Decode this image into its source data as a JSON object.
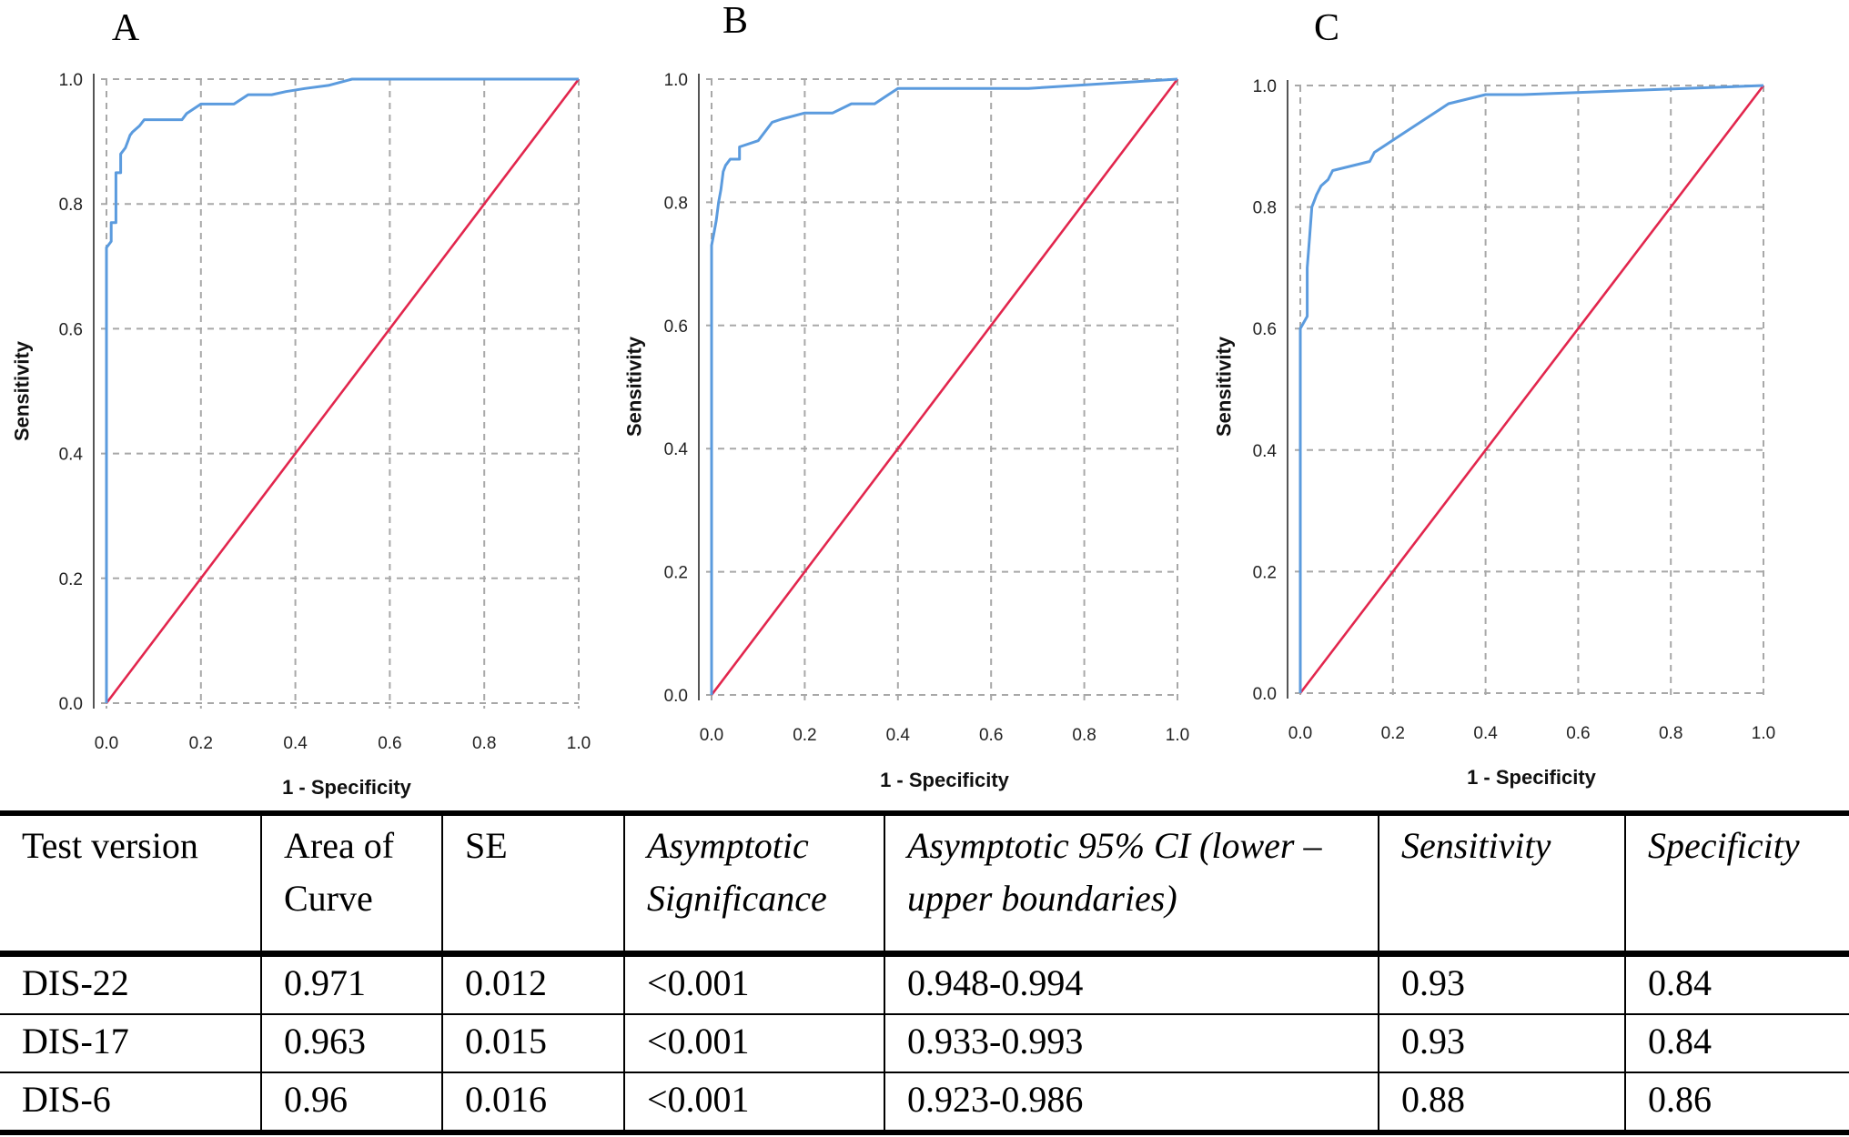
{
  "chart_data": [
    {
      "panel": "A",
      "type": "line",
      "xlabel": "1 - Specificity",
      "ylabel": "Sensitivity",
      "xlim": [
        0,
        1
      ],
      "ylim": [
        0,
        1
      ],
      "xticks": [
        "0.0",
        "0.2",
        "0.4",
        "0.6",
        "0.8",
        "1.0"
      ],
      "yticks": [
        "0.0",
        "0.2",
        "0.4",
        "0.6",
        "0.8",
        "1.0"
      ],
      "grid": true,
      "colors": {
        "roc": "#5b9bde",
        "reference": "#e2264d"
      },
      "series": [
        {
          "x": [
            0,
            0,
            0.01,
            0.01,
            0.02,
            0.02,
            0.03,
            0.03,
            0.04,
            0.045,
            0.05,
            0.055,
            0.07,
            0.08,
            0.1,
            0.12,
            0.16,
            0.17,
            0.2,
            0.27,
            0.3,
            0.35,
            0.38,
            0.42,
            0.47,
            0.52,
            1.0
          ],
          "y": [
            0,
            0.73,
            0.74,
            0.77,
            0.77,
            0.85,
            0.85,
            0.88,
            0.89,
            0.9,
            0.91,
            0.915,
            0.925,
            0.935,
            0.935,
            0.935,
            0.935,
            0.945,
            0.96,
            0.96,
            0.975,
            0.975,
            0.98,
            0.985,
            0.99,
            1.0,
            1.0
          ]
        },
        {
          "x": [
            0,
            1
          ],
          "y": [
            0,
            1
          ]
        }
      ]
    },
    {
      "panel": "B",
      "type": "line",
      "xlabel": "1 - Specificity",
      "ylabel": "Sensitivity",
      "xlim": [
        0,
        1
      ],
      "ylim": [
        0,
        1
      ],
      "xticks": [
        "0.0",
        "0.2",
        "0.4",
        "0.6",
        "0.8",
        "1.0"
      ],
      "yticks": [
        "0.0",
        "0.2",
        "0.4",
        "0.6",
        "0.8",
        "1.0"
      ],
      "grid": true,
      "colors": {
        "roc": "#5b9bde",
        "reference": "#e2264d"
      },
      "series": [
        {
          "x": [
            0,
            0,
            0.005,
            0.01,
            0.015,
            0.02,
            0.025,
            0.03,
            0.04,
            0.05,
            0.06,
            0.06,
            0.1,
            0.13,
            0.15,
            0.2,
            0.26,
            0.3,
            0.35,
            0.38,
            0.4,
            0.45,
            0.68,
            1.0
          ],
          "y": [
            0,
            0.73,
            0.75,
            0.77,
            0.8,
            0.82,
            0.85,
            0.86,
            0.87,
            0.87,
            0.87,
            0.89,
            0.9,
            0.93,
            0.935,
            0.945,
            0.945,
            0.96,
            0.96,
            0.975,
            0.985,
            0.985,
            0.985,
            1.0
          ]
        },
        {
          "x": [
            0,
            1
          ],
          "y": [
            0,
            1
          ]
        }
      ]
    },
    {
      "panel": "C",
      "type": "line",
      "xlabel": "1 - Specificity",
      "ylabel": "Sensitivity",
      "xlim": [
        0,
        1
      ],
      "ylim": [
        0,
        1
      ],
      "xticks": [
        "0.0",
        "0.2",
        "0.4",
        "0.6",
        "0.8",
        "1.0"
      ],
      "yticks": [
        "0.0",
        "0.2",
        "0.4",
        "0.6",
        "0.8",
        "1.0"
      ],
      "grid": true,
      "colors": {
        "roc": "#5b9bde",
        "reference": "#e2264d"
      },
      "series": [
        {
          "x": [
            0,
            0,
            0.015,
            0.015,
            0.02,
            0.025,
            0.03,
            0.035,
            0.045,
            0.06,
            0.07,
            0.15,
            0.16,
            0.22,
            0.3,
            0.32,
            0.4,
            0.48,
            1.0
          ],
          "y": [
            0,
            0.6,
            0.62,
            0.7,
            0.75,
            0.8,
            0.81,
            0.82,
            0.835,
            0.845,
            0.86,
            0.875,
            0.89,
            0.92,
            0.96,
            0.97,
            0.985,
            0.985,
            1.0
          ]
        },
        {
          "x": [
            0,
            1
          ],
          "y": [
            0,
            1
          ]
        }
      ]
    }
  ],
  "table": {
    "headers": [
      "Test version",
      "Area of Curve",
      "SE",
      "Asymptotic Significance",
      "Asymptotic 95% CI (lower – upper boundaries)",
      "Sensitivity",
      "Specificity"
    ],
    "rows": [
      [
        "DIS-22",
        "0.971",
        "0.012",
        "<0.001",
        "0.948-0.994",
        "0.93",
        "0.84"
      ],
      [
        "DIS-17",
        "0.963",
        "0.015",
        "<0.001",
        "0.933-0.993",
        "0.93",
        "0.84"
      ],
      [
        "DIS-6",
        "0.96",
        "0.016",
        "<0.001",
        "0.923-0.986",
        "0.88",
        "0.86"
      ]
    ]
  }
}
